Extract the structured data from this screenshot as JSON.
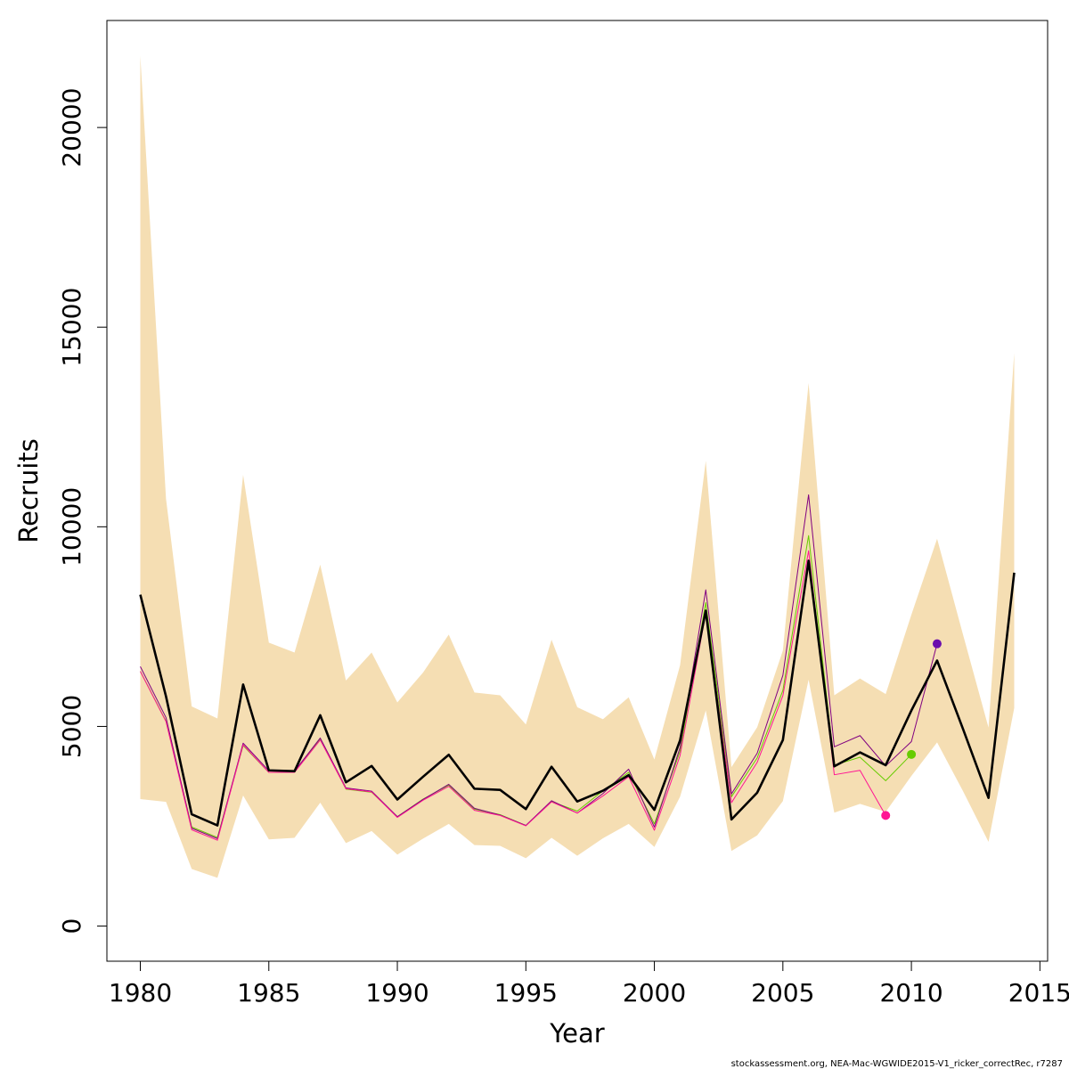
{
  "chart_data": {
    "type": "line",
    "title": "",
    "xlabel": "Year",
    "ylabel": "Recruits",
    "xlim": [
      1978.7,
      2015.3
    ],
    "ylim": [
      -880,
      22680
    ],
    "x_ticks": [
      1980,
      1985,
      1990,
      1995,
      2000,
      2005,
      2010,
      2015
    ],
    "y_ticks": [
      0,
      5000,
      10000,
      15000,
      20000
    ],
    "grid": false,
    "legend": "none",
    "colors": {
      "band": "#f5deb3",
      "main": "#000000",
      "green": "#66cc00",
      "purple": "#800080",
      "pink": "#ff1493",
      "violet_point": "#6a0dad"
    },
    "band": {
      "name": "",
      "x": [
        1980,
        1981,
        1982,
        1983,
        1984,
        1985,
        1986,
        1987,
        1988,
        1989,
        1990,
        1991,
        1992,
        1993,
        1994,
        1995,
        1996,
        1997,
        1998,
        1999,
        2000,
        2001,
        2002,
        2003,
        2004,
        2005,
        2006,
        2007,
        2008,
        2009,
        2010,
        2011,
        2012,
        2013,
        2014
      ],
      "upper": [
        21800,
        10700,
        5500,
        5200,
        11300,
        7100,
        6850,
        9050,
        6150,
        6850,
        5600,
        6350,
        7300,
        5850,
        5780,
        5050,
        7170,
        5480,
        5180,
        5730,
        4170,
        6530,
        11650,
        3980,
        4980,
        6900,
        13600,
        5780,
        6200,
        5810,
        7800,
        9700,
        7320,
        4970,
        14350
      ],
      "lower": [
        3180,
        3110,
        1430,
        1210,
        3270,
        2170,
        2210,
        3090,
        2080,
        2380,
        1790,
        2190,
        2560,
        2030,
        2010,
        1700,
        2210,
        1760,
        2200,
        2560,
        1980,
        3240,
        5400,
        1880,
        2270,
        3130,
        6170,
        2840,
        3060,
        2860,
        3760,
        4600,
        3390,
        2110,
        5460
      ]
    },
    "series": [
      {
        "name": "",
        "x": [
          1980,
          1981,
          1982,
          1983,
          1984,
          1985,
          1986,
          1987,
          1988,
          1989,
          1990,
          1991,
          1992,
          1993,
          1994,
          1995,
          1996,
          1997,
          1998,
          1999,
          2000,
          2001,
          2002,
          2003,
          2004,
          2005,
          2006,
          2007,
          2008,
          2009,
          2010,
          2011,
          2012,
          2013,
          2014
        ],
        "values": [
          8300,
          5750,
          2800,
          2520,
          6050,
          3900,
          3880,
          5280,
          3600,
          4010,
          3170,
          3740,
          4290,
          3440,
          3410,
          2930,
          3990,
          3120,
          3390,
          3780,
          2910,
          4650,
          7900,
          2670,
          3340,
          4660,
          9150,
          4000,
          4350,
          4030,
          5400,
          6650,
          4950,
          3210,
          8850
        ]
      },
      {
        "name": "",
        "x": [
          1980,
          1981,
          1982,
          1983,
          1984,
          1985,
          1986,
          1987,
          1988,
          1989,
          1990,
          1991,
          1992,
          1993,
          1994,
          1995,
          1996,
          1997,
          1998,
          1999,
          2000,
          2001,
          2002,
          2003,
          2004,
          2005,
          2006,
          2007,
          2008,
          2009,
          2010
        ],
        "values": [
          6380,
          5130,
          2480,
          2220,
          4520,
          3850,
          3860,
          4690,
          3430,
          3350,
          2740,
          3180,
          3530,
          2930,
          2790,
          2520,
          3120,
          2880,
          3390,
          3850,
          2560,
          4380,
          8100,
          3240,
          4210,
          5900,
          9780,
          4030,
          4230,
          3640,
          4300
        ],
        "end_point": true
      },
      {
        "name": "",
        "x": [
          1980,
          1981,
          1982,
          1983,
          1984,
          1985,
          1986,
          1987,
          1988,
          1989,
          1990,
          1991,
          1992,
          1993,
          1994,
          1995,
          1996,
          1997,
          1998,
          1999,
          2000,
          2001,
          2002,
          2003,
          2004,
          2005,
          2006,
          2007,
          2008,
          2009,
          2010,
          2011
        ],
        "values": [
          6500,
          5220,
          2450,
          2190,
          4580,
          3890,
          3880,
          4710,
          3460,
          3380,
          2740,
          3170,
          3550,
          2950,
          2780,
          2520,
          3140,
          2830,
          3320,
          3930,
          2480,
          4470,
          8420,
          3310,
          4330,
          6280,
          10800,
          4490,
          4770,
          4010,
          4620,
          7070
        ],
        "end_point": true
      },
      {
        "name": "",
        "x": [
          1980,
          1981,
          1982,
          1983,
          1984,
          1985,
          1986,
          1987,
          1988,
          1989,
          1990,
          1991,
          1992,
          1993,
          1994,
          1995,
          1996,
          1997,
          1998,
          1999,
          2000,
          2001,
          2002,
          2003,
          2004,
          2005,
          2006,
          2007,
          2008,
          2009
        ],
        "values": [
          6380,
          5120,
          2410,
          2150,
          4540,
          3850,
          3850,
          4660,
          3440,
          3360,
          2720,
          3150,
          3500,
          2900,
          2770,
          2510,
          3110,
          2830,
          3260,
          3740,
          2400,
          4270,
          7850,
          3090,
          4100,
          5770,
          9400,
          3790,
          3900,
          2770
        ],
        "end_point": true
      }
    ],
    "footer": "stockassessment.org, NEA-Mac-WGWIDE2015-V1_ricker_correctRec, r7287"
  }
}
